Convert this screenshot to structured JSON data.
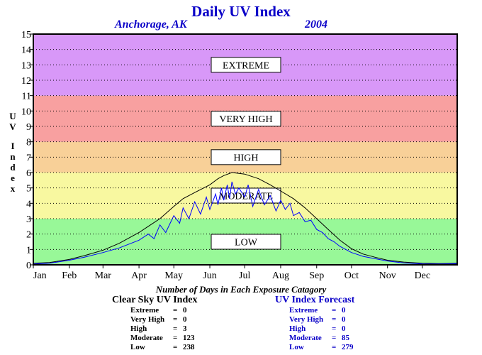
{
  "title": "Daily UV Index",
  "location": "Anchorage, AK",
  "year": "2004",
  "chart_data": {
    "type": "line",
    "ylabel": "UV Index",
    "ylim": [
      0,
      15
    ],
    "yticks": [
      "0",
      "1",
      "2",
      "3",
      "4",
      "5",
      "6",
      "7",
      "8",
      "9",
      "10",
      "11",
      "12",
      "13",
      "14",
      "15"
    ],
    "xlim": [
      1,
      366
    ],
    "months": [
      {
        "label": "Jan",
        "day": 1
      },
      {
        "label": "Feb",
        "day": 32
      },
      {
        "label": "Mar",
        "day": 61
      },
      {
        "label": "Apr",
        "day": 92
      },
      {
        "label": "May",
        "day": 122
      },
      {
        "label": "Jun",
        "day": 153
      },
      {
        "label": "Jul",
        "day": 183
      },
      {
        "label": "Aug",
        "day": 214
      },
      {
        "label": "Sep",
        "day": 245
      },
      {
        "label": "Oct",
        "day": 275
      },
      {
        "label": "Nov",
        "day": 306
      },
      {
        "label": "Dec",
        "day": 336
      }
    ],
    "bands": [
      {
        "name": "LOW",
        "from": 0,
        "to": 3,
        "color": "#98f898"
      },
      {
        "name": "MODERATE",
        "from": 3,
        "to": 6,
        "color": "#f8f8a0"
      },
      {
        "name": "HIGH",
        "from": 6,
        "to": 8,
        "color": "#f8d098"
      },
      {
        "name": "VERY HIGH",
        "from": 8,
        "to": 11,
        "color": "#f8a0a0"
      },
      {
        "name": "EXTREME",
        "from": 11,
        "to": 15,
        "color": "#d898f8"
      }
    ],
    "grid": true,
    "series": [
      {
        "name": "Clear Sky UV Index",
        "color": "#000000",
        "points": [
          [
            1,
            0.1
          ],
          [
            15,
            0.15
          ],
          [
            32,
            0.35
          ],
          [
            45,
            0.6
          ],
          [
            61,
            0.95
          ],
          [
            75,
            1.4
          ],
          [
            92,
            2.1
          ],
          [
            100,
            2.5
          ],
          [
            110,
            3.0
          ],
          [
            122,
            3.8
          ],
          [
            130,
            4.3
          ],
          [
            140,
            4.7
          ],
          [
            153,
            5.2
          ],
          [
            160,
            5.6
          ],
          [
            165,
            5.8
          ],
          [
            172,
            6.0
          ],
          [
            183,
            5.9
          ],
          [
            195,
            5.6
          ],
          [
            205,
            5.2
          ],
          [
            214,
            4.8
          ],
          [
            225,
            4.3
          ],
          [
            235,
            3.7
          ],
          [
            245,
            3.0
          ],
          [
            255,
            2.3
          ],
          [
            265,
            1.6
          ],
          [
            275,
            1.05
          ],
          [
            285,
            0.7
          ],
          [
            295,
            0.5
          ],
          [
            306,
            0.3
          ],
          [
            320,
            0.18
          ],
          [
            336,
            0.1
          ],
          [
            350,
            0.08
          ],
          [
            366,
            0.1
          ]
        ]
      },
      {
        "name": "UV Index Forecast",
        "color": "#0000ff",
        "points": [
          [
            1,
            0.05
          ],
          [
            15,
            0.1
          ],
          [
            32,
            0.3
          ],
          [
            45,
            0.5
          ],
          [
            61,
            0.8
          ],
          [
            75,
            1.1
          ],
          [
            92,
            1.6
          ],
          [
            100,
            2.0
          ],
          [
            105,
            1.7
          ],
          [
            110,
            2.6
          ],
          [
            115,
            2.1
          ],
          [
            122,
            3.2
          ],
          [
            127,
            2.7
          ],
          [
            130,
            3.7
          ],
          [
            135,
            3.0
          ],
          [
            140,
            4.1
          ],
          [
            145,
            3.3
          ],
          [
            150,
            4.4
          ],
          [
            153,
            3.6
          ],
          [
            158,
            4.6
          ],
          [
            160,
            3.9
          ],
          [
            163,
            5.0
          ],
          [
            165,
            4.2
          ],
          [
            168,
            5.2
          ],
          [
            170,
            4.3
          ],
          [
            172,
            5.4
          ],
          [
            175,
            4.6
          ],
          [
            178,
            5.0
          ],
          [
            183,
            4.4
          ],
          [
            186,
            5.2
          ],
          [
            190,
            3.8
          ],
          [
            195,
            4.9
          ],
          [
            200,
            3.9
          ],
          [
            205,
            4.5
          ],
          [
            210,
            3.5
          ],
          [
            214,
            4.2
          ],
          [
            218,
            3.6
          ],
          [
            222,
            4.0
          ],
          [
            225,
            3.2
          ],
          [
            230,
            3.4
          ],
          [
            235,
            2.8
          ],
          [
            240,
            2.9
          ],
          [
            245,
            2.3
          ],
          [
            250,
            2.1
          ],
          [
            255,
            1.7
          ],
          [
            260,
            1.5
          ],
          [
            265,
            1.2
          ],
          [
            270,
            1.0
          ],
          [
            275,
            0.8
          ],
          [
            285,
            0.55
          ],
          [
            295,
            0.4
          ],
          [
            306,
            0.25
          ],
          [
            320,
            0.12
          ],
          [
            336,
            0.06
          ],
          [
            350,
            0.05
          ],
          [
            366,
            0.07
          ]
        ]
      }
    ]
  },
  "caption": "Number of Days in Each Exposure Catagory",
  "clear_sky": {
    "heading": "Clear Sky UV Index",
    "rows": [
      {
        "label": "Extreme",
        "eq": "=",
        "value": "0"
      },
      {
        "label": "Very High",
        "eq": "=",
        "value": "0"
      },
      {
        "label": "High",
        "eq": "=",
        "value": "3"
      },
      {
        "label": "Moderate",
        "eq": "=",
        "value": "123"
      },
      {
        "label": "Low",
        "eq": "=",
        "value": "238"
      }
    ]
  },
  "forecast": {
    "heading": "UV Index Forecast",
    "rows": [
      {
        "label": "Extreme",
        "eq": "=",
        "value": "0"
      },
      {
        "label": "Very High",
        "eq": "=",
        "value": "0"
      },
      {
        "label": "High",
        "eq": "=",
        "value": "0"
      },
      {
        "label": "Moderate",
        "eq": "=",
        "value": "85"
      },
      {
        "label": "Low",
        "eq": "=",
        "value": "279"
      }
    ]
  }
}
